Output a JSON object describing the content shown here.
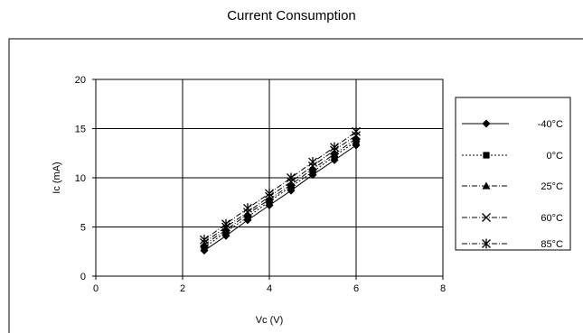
{
  "chart_data": {
    "type": "line",
    "title": "Current Consumption",
    "xlabel": "Vc (V)",
    "ylabel": "Ic (mA)",
    "xlim": [
      0,
      8
    ],
    "ylim": [
      0,
      20
    ],
    "xticks": [
      "0",
      "2",
      "4",
      "6",
      "8"
    ],
    "yticks": [
      "0",
      "5",
      "10",
      "15",
      "20"
    ],
    "grid": true,
    "legend_position": "right",
    "x": [
      2.5,
      3,
      3.5,
      4,
      4.5,
      5,
      5.5,
      6
    ],
    "series": [
      {
        "name": "-40°C",
        "marker": "diamond",
        "dash": "solid",
        "values": [
          2.6,
          4.1,
          5.7,
          7.2,
          8.7,
          10.3,
          11.8,
          13.3
        ]
      },
      {
        "name": "0°C",
        "marker": "square",
        "dash": "dotted",
        "values": [
          2.9,
          4.5,
          6.0,
          7.6,
          9.1,
          10.6,
          12.2,
          13.7
        ]
      },
      {
        "name": "25°C",
        "marker": "triangle",
        "dash": "dashdot",
        "values": [
          3.2,
          4.7,
          6.3,
          7.8,
          9.3,
          10.9,
          12.4,
          14.0
        ]
      },
      {
        "name": "60°C",
        "marker": "x",
        "dash": "dashdot",
        "values": [
          3.4,
          5.0,
          6.5,
          8.1,
          9.6,
          11.2,
          12.8,
          14.3
        ]
      },
      {
        "name": "85°C",
        "marker": "asterisk",
        "dash": "dashdot",
        "values": [
          3.7,
          5.3,
          6.9,
          8.4,
          10.0,
          11.6,
          13.1,
          14.7
        ]
      }
    ],
    "line_color": "#000000",
    "grid_color": "#000000"
  }
}
